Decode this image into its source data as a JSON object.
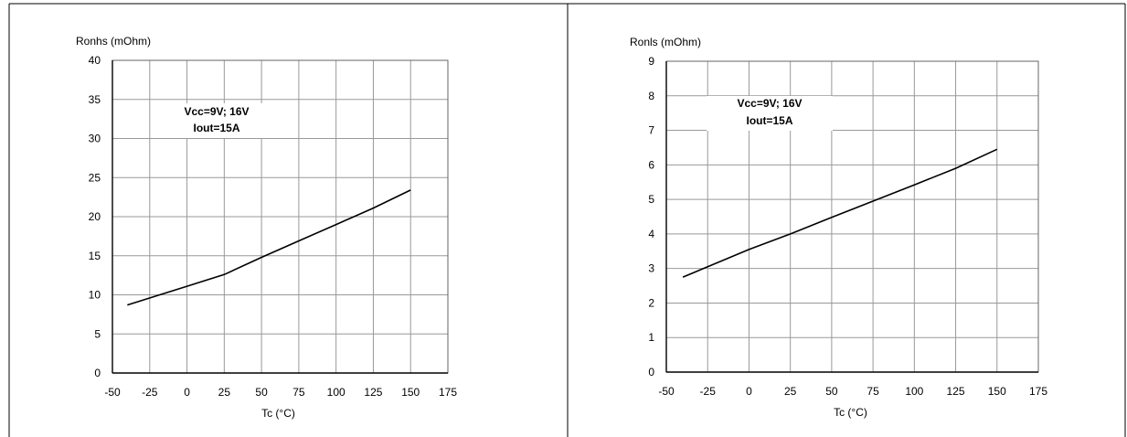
{
  "chart_data": [
    {
      "type": "line",
      "xlabel": "Tc (°C)",
      "ylabel": "Ronhs (mOhm)",
      "xlim": [
        -50,
        175
      ],
      "ylim": [
        0,
        40
      ],
      "xticks": [
        -50,
        -25,
        0,
        25,
        50,
        75,
        100,
        125,
        150,
        175
      ],
      "yticks": [
        0,
        5,
        10,
        15,
        20,
        25,
        30,
        35,
        40
      ],
      "grid": true,
      "annotation": [
        "Vcc=9V; 16V",
        "Iout=15A"
      ],
      "series": [
        {
          "x": [
            -40,
            0,
            25,
            50,
            75,
            100,
            125,
            150
          ],
          "y": [
            8.7,
            11.1,
            12.6,
            14.8,
            16.9,
            19.0,
            21.1,
            23.4
          ]
        }
      ]
    },
    {
      "type": "line",
      "xlabel": "Tc (°C)",
      "ylabel": "Ronls (mOhm)",
      "xlim": [
        -50,
        175
      ],
      "ylim": [
        0,
        9
      ],
      "xticks": [
        -50,
        -25,
        0,
        25,
        50,
        75,
        100,
        125,
        150,
        175
      ],
      "yticks": [
        0,
        1,
        2,
        3,
        4,
        5,
        6,
        7,
        8,
        9
      ],
      "grid": true,
      "annotation": [
        "Vcc=9V; 16V",
        "Iout=15A"
      ],
      "series": [
        {
          "x": [
            -40,
            0,
            25,
            50,
            75,
            100,
            125,
            150
          ],
          "y": [
            2.75,
            3.55,
            4.0,
            4.48,
            4.95,
            5.42,
            5.9,
            6.45
          ]
        }
      ]
    }
  ]
}
